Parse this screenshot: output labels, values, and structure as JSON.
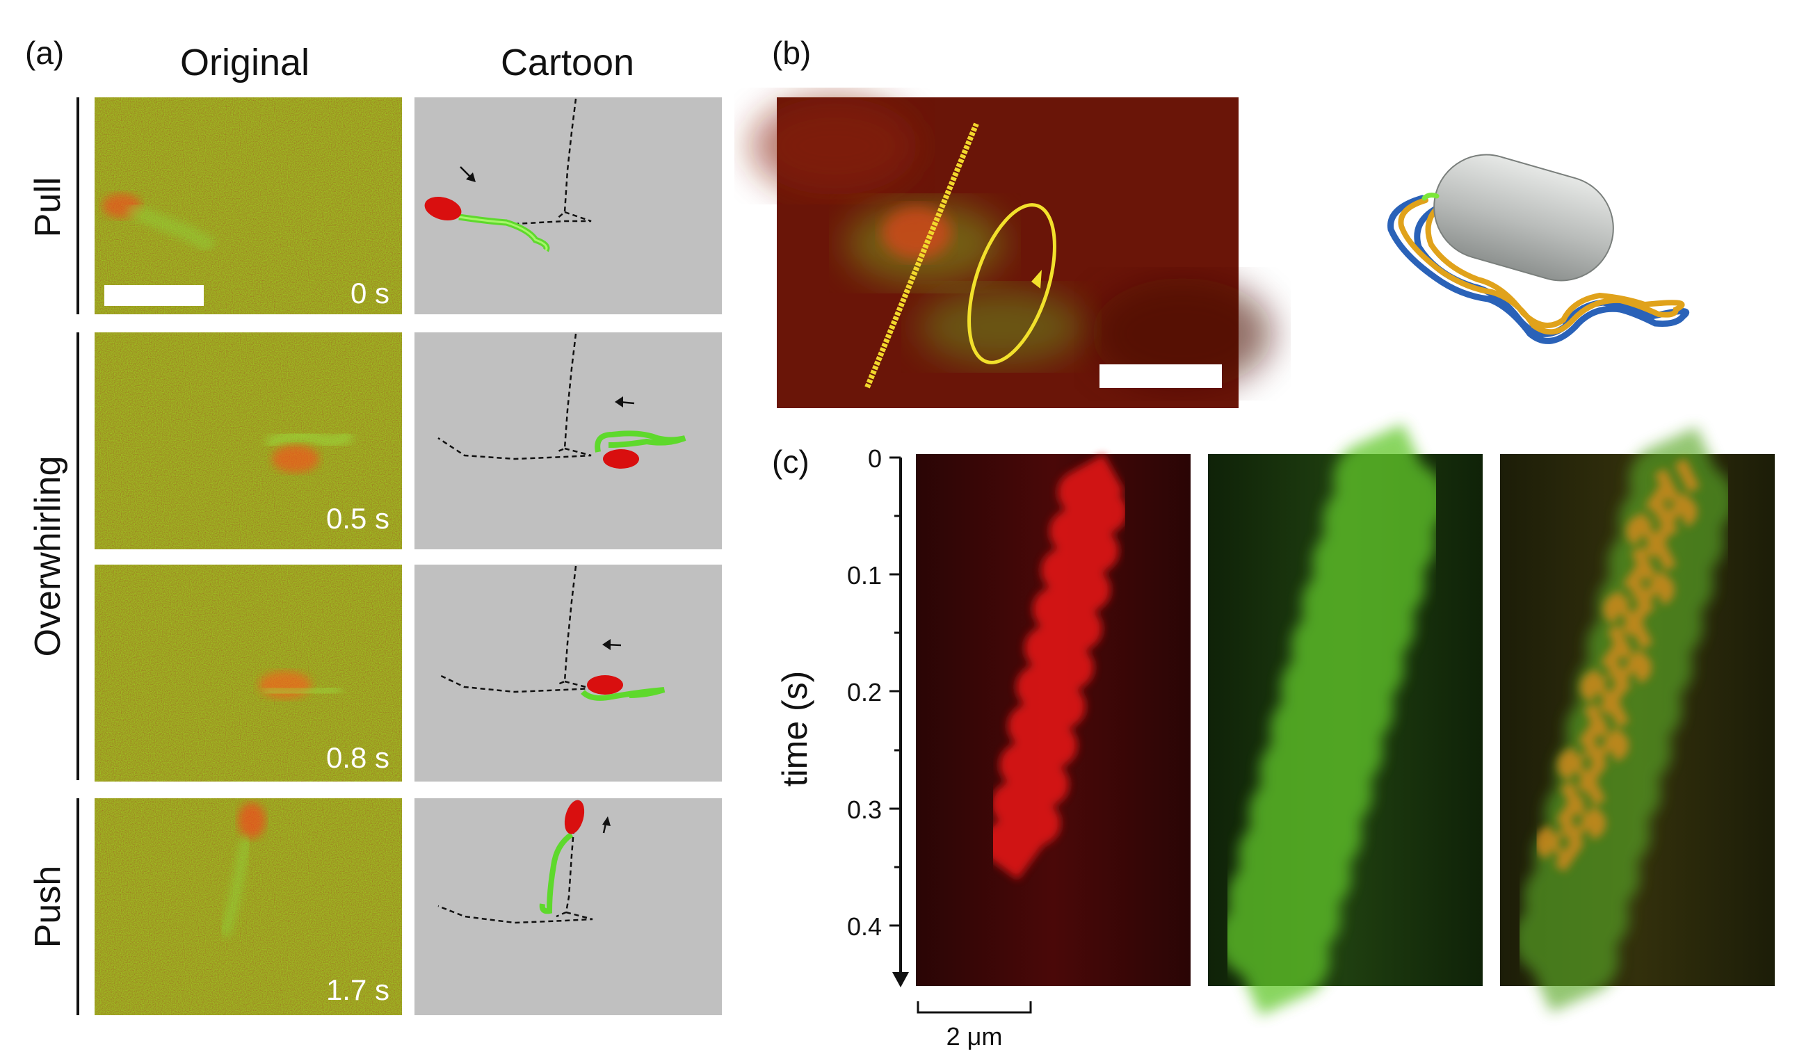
{
  "panel_a": {
    "label": "(a)",
    "col_original": "Original",
    "col_cartoon": "Cartoon",
    "rows": [
      {
        "name": "Pull",
        "time": "0 s"
      },
      {
        "name": "Overwhirling",
        "time": "0.5 s"
      },
      {
        "name": "Overwhirling",
        "time": "0.8 s"
      },
      {
        "name": "Push",
        "time": "1.7 s"
      }
    ]
  },
  "panel_b": {
    "label": "(b)"
  },
  "panel_c": {
    "label": "(c)",
    "axis_label": "time (s)",
    "ticks": [
      "0",
      "0.1",
      "0.2",
      "0.3",
      "0.4"
    ],
    "scale_bar": "2 μm"
  },
  "colors": {
    "red": "#d90f0f",
    "green": "#7cf23a",
    "cartoon_bg": "#c0c0c0",
    "yellow": "#f2e12c",
    "gold": "#e0a21b",
    "blue": "#2a62b8"
  }
}
